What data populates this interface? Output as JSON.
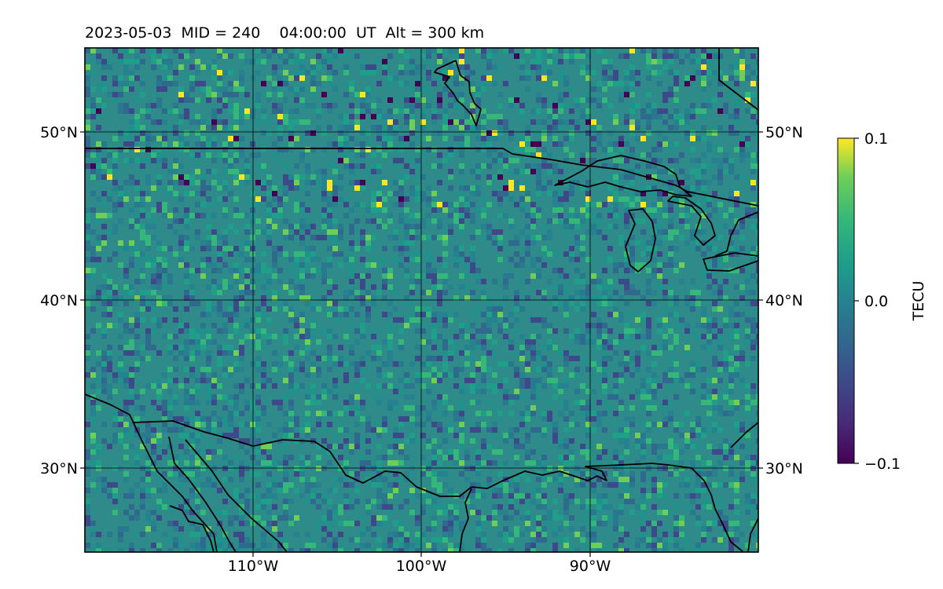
{
  "title": "2023-05-03  MID = 240    04:00:00  UT  Alt = 300 km",
  "map": {
    "lon_range": [
      -120,
      -80
    ],
    "lat_range": [
      25,
      55
    ],
    "lat_ticks": [
      {
        "value": 50,
        "label": "50°N"
      },
      {
        "value": 40,
        "label": "40°N"
      },
      {
        "value": 30,
        "label": "30°N"
      }
    ],
    "lon_ticks": [
      {
        "value": -110,
        "label": "110°W"
      },
      {
        "value": -100,
        "label": "100°W"
      },
      {
        "value": -90,
        "label": "90°W"
      }
    ],
    "grid": true,
    "background_color": "#2f8a8a"
  },
  "colorbar": {
    "label": "TECU",
    "min": -0.1,
    "max": 0.1,
    "ticks": [
      {
        "value": 0.1,
        "label": "0.1"
      },
      {
        "value": 0.0,
        "label": "0.0"
      },
      {
        "value": -0.1,
        "label": "−0.1"
      }
    ],
    "colormap": "viridis"
  }
}
